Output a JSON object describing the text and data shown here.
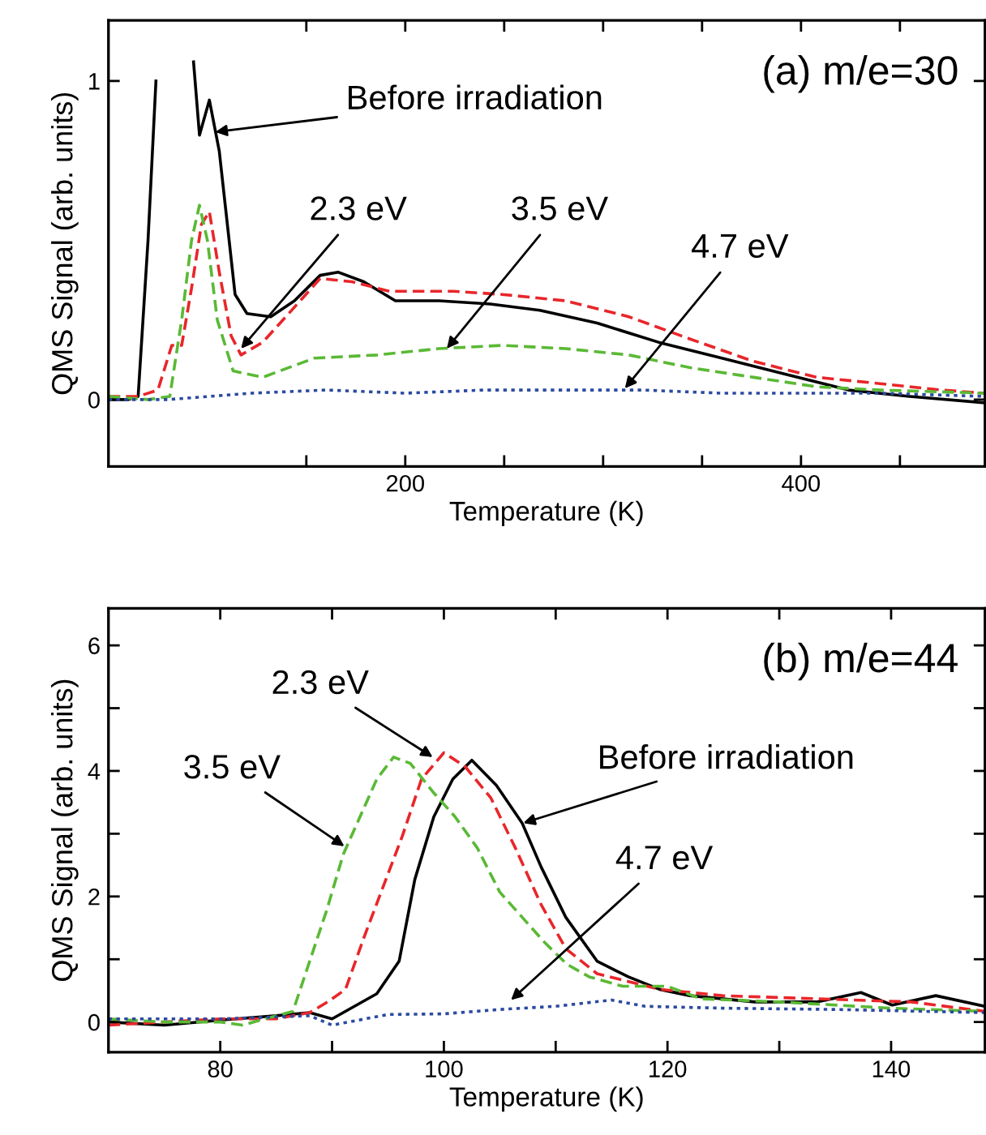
{
  "chart_data": [
    {
      "type": "line",
      "xlabel": "Temperature (K)",
      "ylabel": "QMS Signal (arb. units)",
      "legend": false,
      "grid": false,
      "xlim": [
        50,
        493
      ],
      "ylim": [
        -0.21,
        1.19
      ],
      "xticks": [
        {
          "value": 150,
          "label": null
        },
        200,
        {
          "value": 250,
          "label": null
        },
        {
          "value": 300,
          "label": null
        },
        {
          "value": 350,
          "label": null
        },
        400,
        {
          "value": 450,
          "label": null
        }
      ],
      "yticks": [
        0,
        1
      ],
      "series": [
        {
          "color": "#000000",
          "line_style": "solid",
          "x": [
            50,
            60,
            65,
            70,
            74,
            83,
            93,
            96,
            101,
            106,
            114,
            120,
            132,
            144,
            157,
            166,
            179,
            195,
            217,
            243,
            268,
            297,
            328,
            360,
            392,
            424,
            455,
            493
          ],
          "values": [
            0,
            0,
            0.01,
            0.5,
            1.0,
            null,
            1.06,
            0.83,
            0.94,
            0.78,
            0.33,
            0.27,
            0.26,
            0.31,
            0.39,
            0.4,
            0.37,
            0.31,
            0.31,
            0.3,
            0.28,
            0.24,
            0.18,
            0.13,
            0.08,
            0.03,
            0.01,
            -0.01
          ]
        },
        {
          "color": "#e8262a",
          "line_style": "dashed",
          "x": [
            50,
            65,
            75,
            82,
            87,
            92,
            97,
            101,
            106,
            112,
            117,
            128,
            144,
            157,
            173,
            192,
            224,
            249,
            281,
            313,
            344,
            376,
            408,
            440,
            471,
            493
          ],
          "values": [
            0.01,
            0.01,
            0.03,
            0.17,
            0.17,
            0.35,
            0.55,
            0.59,
            0.4,
            0.2,
            0.14,
            0.18,
            0.29,
            0.38,
            0.37,
            0.34,
            0.34,
            0.33,
            0.31,
            0.26,
            0.19,
            0.12,
            0.07,
            0.05,
            0.03,
            0.02
          ]
        },
        {
          "color": "#5ab935",
          "line_style": "dashed",
          "x": [
            50,
            70,
            81,
            87,
            92,
            96,
            100,
            105,
            113,
            128,
            154,
            186,
            217,
            249,
            281,
            313,
            344,
            376,
            408,
            440,
            493
          ],
          "values": [
            0.01,
            0.0,
            0.01,
            0.25,
            0.5,
            0.61,
            0.5,
            0.25,
            0.09,
            0.07,
            0.13,
            0.14,
            0.16,
            0.17,
            0.16,
            0.14,
            0.1,
            0.07,
            0.04,
            0.03,
            0.02
          ]
        },
        {
          "color": "#2b4aa0",
          "line_style": "dotted",
          "x": [
            50,
            80,
            122,
            160,
            200,
            240,
            280,
            320,
            360,
            400,
            440,
            493
          ],
          "values": [
            0.0,
            0.0,
            0.02,
            0.03,
            0.02,
            0.03,
            0.03,
            0.03,
            0.02,
            0.02,
            0.02,
            0.01
          ]
        }
      ],
      "annotations": [
        "(a) m/e=30",
        {
          "text": "Before irradiation",
          "x": 104,
          "y": 0.84
        },
        {
          "text": "2.3 eV",
          "x": 117,
          "y": 0.16
        },
        {
          "text": "3.5 eV",
          "x": 221,
          "y": 0.16
        },
        {
          "text": "4.7 eV",
          "x": 311,
          "y": 0.035
        }
      ]
    },
    {
      "type": "line",
      "xlabel": "Temperature (K)",
      "ylabel": "QMS Signal (arb. units)",
      "legend": false,
      "grid": false,
      "xlim": [
        70,
        148.4
      ],
      "ylim": [
        -0.48,
        6.59
      ],
      "xticks": [
        80,
        {
          "value": 90,
          "label": null
        },
        100,
        {
          "value": 110,
          "label": null
        },
        120,
        {
          "value": 130,
          "label": null
        },
        140
      ],
      "yticks": [
        0,
        {
          "value": 1,
          "label": null
        },
        2,
        {
          "value": 3,
          "label": null
        },
        4,
        {
          "value": 5,
          "label": null
        },
        6
      ],
      "series": [
        {
          "color": "#000000",
          "line_style": "solid",
          "x": [
            70,
            75,
            80,
            85,
            88,
            90,
            92,
            94,
            96,
            97.4,
            99.1,
            100.8,
            102.5,
            104.7,
            107,
            108.7,
            110.9,
            113.7,
            116.5,
            119.3,
            122,
            127.8,
            133.4,
            137.3,
            140.1,
            144,
            148.4
          ],
          "values": [
            0.0,
            -0.05,
            0.03,
            0.1,
            0.15,
            0.05,
            0.25,
            0.45,
            0.97,
            2.27,
            3.27,
            3.87,
            4.17,
            3.77,
            3.17,
            2.47,
            1.67,
            0.97,
            0.72,
            0.52,
            0.42,
            0.32,
            0.32,
            0.47,
            0.27,
            0.42,
            0.25
          ]
        },
        {
          "color": "#e8262a",
          "line_style": "dashed",
          "x": [
            70,
            75,
            80,
            85,
            88,
            89.6,
            91.2,
            92.9,
            94.6,
            96.3,
            98,
            100,
            101.9,
            104.2,
            106.4,
            108.7,
            110.9,
            113.7,
            119.3,
            124.9,
            133.4,
            141.8,
            148.4
          ],
          "values": [
            -0.05,
            0.0,
            0.05,
            0.05,
            0.15,
            0.32,
            0.52,
            1.37,
            2.17,
            2.97,
            3.87,
            4.29,
            4.07,
            3.57,
            2.77,
            1.87,
            1.17,
            0.77,
            0.52,
            0.42,
            0.37,
            0.32,
            0.17
          ]
        },
        {
          "color": "#5ab935",
          "line_style": "dashed",
          "x": [
            70,
            75,
            80,
            82,
            85,
            86.5,
            88,
            89.5,
            91,
            92.5,
            94,
            95.5,
            97,
            99,
            101,
            103,
            105,
            107,
            109,
            111,
            113,
            116,
            120,
            123,
            130,
            140,
            148.4
          ],
          "values": [
            0.05,
            0.0,
            0.0,
            -0.05,
            0.1,
            0.17,
            0.97,
            1.77,
            2.67,
            3.27,
            3.87,
            4.22,
            4.12,
            3.67,
            3.27,
            2.77,
            2.07,
            1.67,
            1.27,
            0.92,
            0.72,
            0.57,
            0.57,
            0.37,
            0.32,
            0.22,
            0.17
          ]
        },
        {
          "color": "#2b4aa0",
          "line_style": "dotted",
          "x": [
            70,
            80,
            88,
            90,
            95,
            100,
            105,
            110,
            115,
            118,
            125,
            135,
            148.4
          ],
          "values": [
            0.05,
            0.05,
            0.1,
            -0.05,
            0.12,
            0.13,
            0.2,
            0.25,
            0.35,
            0.25,
            0.22,
            0.2,
            0.15
          ]
        }
      ],
      "annotations": [
        "(b) m/e=44",
        {
          "text": "2.3 eV",
          "x": 99,
          "y": 4.22
        },
        {
          "text": "3.5 eV",
          "x": 91.1,
          "y": 2.8
        },
        {
          "text": "Before irradiation",
          "x": 107.1,
          "y": 3.17
        },
        {
          "text": "4.7 eV",
          "x": 106,
          "y": 0.35
        }
      ]
    }
  ]
}
